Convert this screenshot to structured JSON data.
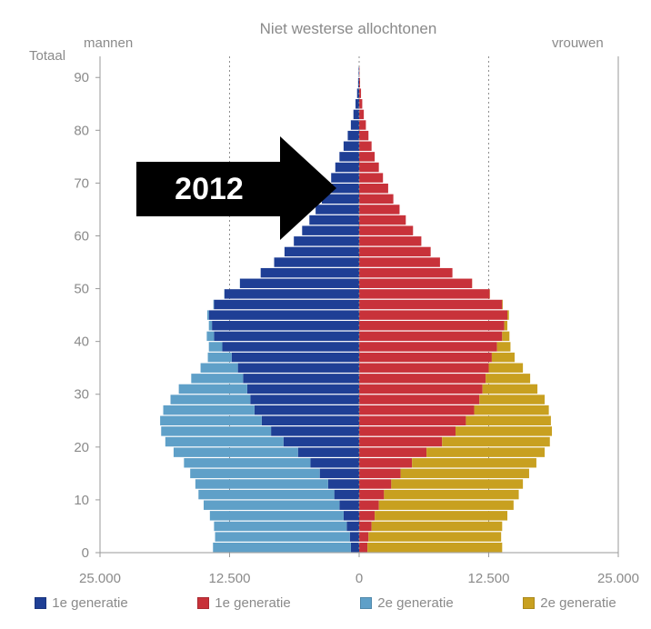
{
  "chart_data": {
    "type": "population-pyramid",
    "title": "Niet westerse allochtonen",
    "left_label": "mannen",
    "right_label": "vrouwen",
    "y_axis_label": "Totaal",
    "y_ticks": [
      0,
      10,
      20,
      30,
      40,
      50,
      60,
      70,
      80,
      90
    ],
    "x_ticks": [
      "25.000",
      "12.500",
      "0",
      "12.500",
      "25.000"
    ],
    "x_range": [
      -25000,
      25000
    ],
    "y_range": [
      0,
      94
    ],
    "gridlines_x": [
      -12500,
      0,
      12500
    ],
    "age_groups": [
      0,
      2,
      4,
      6,
      8,
      10,
      12,
      14,
      16,
      18,
      20,
      22,
      24,
      26,
      28,
      30,
      32,
      34,
      36,
      38,
      40,
      42,
      44,
      46,
      48,
      50,
      52,
      54,
      56,
      58,
      60,
      62,
      64,
      66,
      68,
      70,
      72,
      74,
      76,
      78,
      80,
      82,
      84,
      86,
      88,
      90
    ],
    "series": [
      {
        "name": "1e generatie",
        "side": "mannen",
        "color": "#1f3f95",
        "values": [
          800,
          900,
          1200,
          1500,
          1900,
          2400,
          3000,
          3800,
          4700,
          5900,
          7300,
          8500,
          9400,
          10100,
          10500,
          10800,
          11200,
          11700,
          12300,
          13200,
          14000,
          14200,
          14500,
          14000,
          13000,
          11500,
          9500,
          8200,
          7200,
          6300,
          5500,
          4800,
          4200,
          3600,
          3200,
          2700,
          2300,
          1900,
          1500,
          1100,
          800,
          550,
          350,
          200,
          100,
          50
        ]
      },
      {
        "name": "1e generatie",
        "side": "vrouwen",
        "color": "#c8323a",
        "values": [
          800,
          900,
          1200,
          1500,
          1900,
          2400,
          3100,
          4000,
          5100,
          6500,
          8000,
          9300,
          10300,
          11100,
          11600,
          11900,
          12200,
          12500,
          12800,
          13300,
          13800,
          14000,
          14300,
          13800,
          12600,
          10900,
          9000,
          7800,
          6900,
          6000,
          5200,
          4500,
          3900,
          3300,
          2800,
          2300,
          1900,
          1500,
          1200,
          900,
          650,
          450,
          300,
          180,
          90,
          40
        ]
      },
      {
        "name": "2e generatie",
        "side": "mannen",
        "color": "#5fa0c8",
        "values": [
          13300,
          13000,
          12800,
          12900,
          13100,
          13100,
          12800,
          12500,
          12200,
          12000,
          11400,
          10600,
          9800,
          8800,
          7700,
          6600,
          5000,
          3600,
          2300,
          1300,
          700,
          300,
          150,
          60,
          20,
          10,
          0,
          0,
          0,
          0,
          0,
          0,
          0,
          0,
          0,
          0,
          0,
          0,
          0,
          0,
          0,
          0,
          0,
          0,
          0,
          0
        ]
      },
      {
        "name": "2e generatie",
        "side": "vrouwen",
        "color": "#c8a020",
        "values": [
          13000,
          12800,
          12600,
          12800,
          13000,
          13000,
          12700,
          12400,
          12000,
          11400,
          10400,
          9300,
          8200,
          7200,
          6300,
          5300,
          4300,
          3300,
          2200,
          1300,
          700,
          300,
          150,
          60,
          20,
          10,
          0,
          0,
          0,
          0,
          0,
          0,
          0,
          0,
          0,
          0,
          0,
          0,
          0,
          0,
          0,
          0,
          0,
          0,
          0,
          0
        ]
      }
    ],
    "annotation": "2012",
    "legend_position": "bottom"
  },
  "legend": {
    "items": [
      {
        "label": "1e generatie",
        "color": "#1f3f95"
      },
      {
        "label": "1e generatie",
        "color": "#c8323a"
      },
      {
        "label": "2e generatie",
        "color": "#5fa0c8"
      },
      {
        "label": "2e generatie",
        "color": "#c8a020"
      }
    ]
  }
}
